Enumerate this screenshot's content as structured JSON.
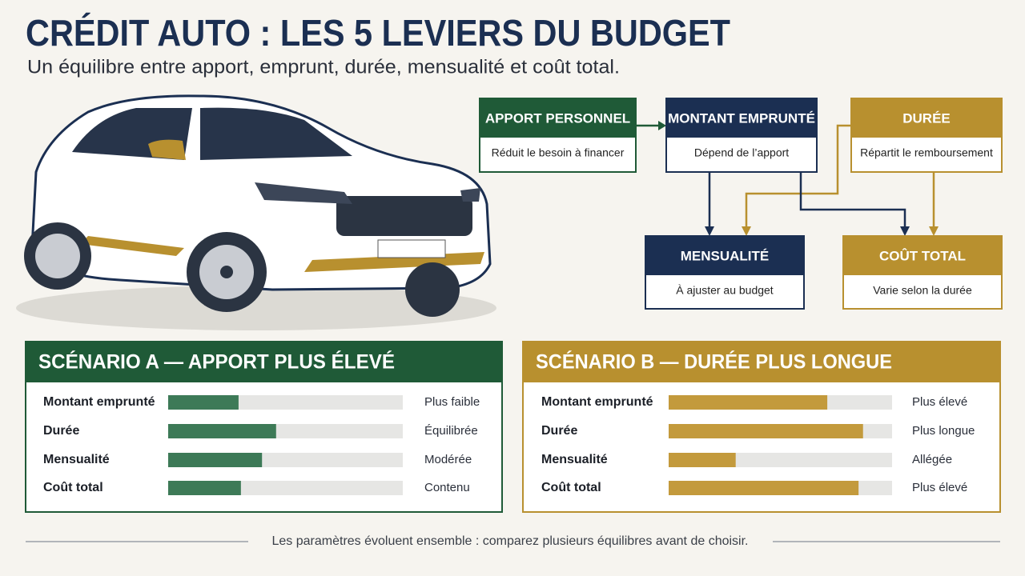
{
  "header": {
    "title": "CRÉDIT AUTO : LES 5 LEVIERS DU BUDGET",
    "subtitle": "Un équilibre entre apport, emprunt, durée, mensualité et coût total."
  },
  "nodes": [
    {
      "title": "APPORT PERSONNEL",
      "text": "Réduit le besoin à financer",
      "color": "#1f5a37"
    },
    {
      "title": "MONTANT EMPRUNTÉ",
      "text": "Dépend de l’apport",
      "color": "#1b2f52"
    },
    {
      "title": "DURÉE",
      "text": "Répartit le remboursement",
      "color": "#b8902f"
    },
    {
      "title": "MENSUALITÉ",
      "text": "À ajuster au budget",
      "color": "#1b2f52"
    },
    {
      "title": "COÛT TOTAL",
      "text": "Varie selon la durée",
      "color": "#b8902f"
    }
  ],
  "scenarios": [
    {
      "title": "SCÉNARIO A — APPORT PLUS ÉLEVÉ",
      "color": "#1f5a37",
      "bar_color": "#3d7a57",
      "rows": [
        {
          "label": "Montant emprunté",
          "level": 30,
          "status": "Plus faible"
        },
        {
          "label": "Durée",
          "level": 46,
          "status": "Équilibrée"
        },
        {
          "label": "Mensualité",
          "level": 40,
          "status": "Modérée"
        },
        {
          "label": "Coût total",
          "level": 31,
          "status": "Contenu"
        }
      ]
    },
    {
      "title": "SCÉNARIO B — DURÉE PLUS LONGUE",
      "color": "#b8902f",
      "bar_color": "#c39a3c",
      "rows": [
        {
          "label": "Montant emprunté",
          "level": 71,
          "status": "Plus élevé"
        },
        {
          "label": "Durée",
          "level": 87,
          "status": "Plus longue"
        },
        {
          "label": "Mensualité",
          "level": 30,
          "status": "Allégée"
        },
        {
          "label": "Coût total",
          "level": 85,
          "status": "Plus élevé"
        }
      ]
    }
  ],
  "footer": "Les paramètres évoluent ensemble : comparez plusieurs équilibres avant de choisir."
}
